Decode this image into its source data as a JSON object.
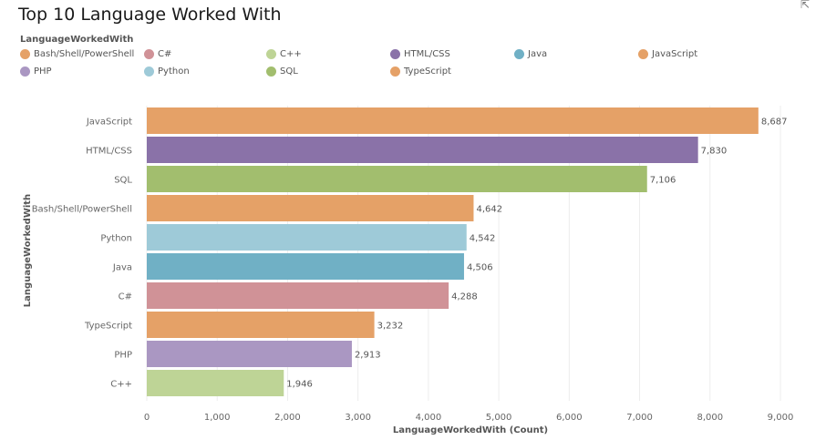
{
  "chart_data": {
    "type": "bar",
    "orientation": "horizontal",
    "title": "Top 10 Language Worked With",
    "legend_title": "LanguageWorkedWith",
    "legend_placement": "top",
    "xlabel": "LanguageWorkedWith (Count)",
    "ylabel": "LanguageWorkedWith",
    "xlim": [
      0,
      9000
    ],
    "x_ticks": [
      0,
      1000,
      2000,
      3000,
      4000,
      5000,
      6000,
      7000,
      8000,
      9000
    ],
    "x_tick_labels": [
      "0",
      "1,000",
      "2,000",
      "3,000",
      "4,000",
      "5,000",
      "6,000",
      "7,000",
      "8,000",
      "9,000"
    ],
    "grid": true,
    "legend": [
      {
        "name": "Bash/Shell/PowerShell",
        "color": "#e5a167"
      },
      {
        "name": "C#",
        "color": "#d09297"
      },
      {
        "name": "C++",
        "color": "#bed496"
      },
      {
        "name": "HTML/CSS",
        "color": "#8a72a8"
      },
      {
        "name": "Java",
        "color": "#70b0c5"
      },
      {
        "name": "JavaScript",
        "color": "#e5a167"
      },
      {
        "name": "PHP",
        "color": "#aa97c2"
      },
      {
        "name": "Python",
        "color": "#9ecad8"
      },
      {
        "name": "SQL",
        "color": "#a2be6e"
      },
      {
        "name": "TypeScript",
        "color": "#e5a167"
      }
    ],
    "categories": [
      "JavaScript",
      "HTML/CSS",
      "SQL",
      "Bash/Shell/PowerShell",
      "Python",
      "Java",
      "C#",
      "TypeScript",
      "PHP",
      "C++"
    ],
    "values": [
      8687,
      7830,
      7106,
      4642,
      4542,
      4506,
      4288,
      3232,
      2913,
      1946
    ],
    "value_labels": [
      "8,687",
      "7,830",
      "7,106",
      "4,642",
      "4,542",
      "4,506",
      "4,288",
      "3,232",
      "2,913",
      "1,946"
    ],
    "colors": [
      "#e5a167",
      "#8a72a8",
      "#a2be6e",
      "#e5a167",
      "#9ecad8",
      "#70b0c5",
      "#d09297",
      "#e5a167",
      "#aa97c2",
      "#bed496"
    ]
  },
  "icons": {
    "corner": "pointer-icon"
  }
}
